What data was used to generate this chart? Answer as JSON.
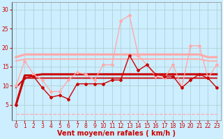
{
  "x": [
    0,
    1,
    2,
    3,
    4,
    5,
    6,
    7,
    8,
    9,
    10,
    11,
    12,
    13,
    14,
    15,
    16,
    17,
    18,
    19,
    20,
    21,
    22,
    23
  ],
  "bg_color": "#cceeff",
  "grid_color": "#aacccc",
  "xlabel": "Vent moyen/en rafales ( km/h )",
  "xlabel_color": "#cc0000",
  "xlabel_fontsize": 7,
  "yticks": [
    5,
    10,
    15,
    20,
    25,
    30
  ],
  "ylim": [
    1,
    32
  ],
  "xlim": [
    -0.5,
    23.5
  ],
  "tick_color": "#cc0000",
  "tick_fontsize": 5.5,
  "ref_line_upper1": {
    "y": [
      17.5,
      18.2,
      18.2,
      18.2,
      18.2,
      18.2,
      18.2,
      18.2,
      18.2,
      18.2,
      18.2,
      18.2,
      18.2,
      18.2,
      18.2,
      18.2,
      18.2,
      18.2,
      18.2,
      18.2,
      18.2,
      18.2,
      17.5,
      17.5
    ],
    "color": "#ffaaaa",
    "lw": 2.2
  },
  "ref_line_upper2": {
    "y": [
      16.5,
      17.0,
      17.0,
      17.0,
      17.0,
      17.0,
      17.0,
      17.0,
      17.0,
      17.0,
      17.0,
      17.0,
      17.0,
      17.0,
      17.0,
      17.0,
      17.0,
      17.0,
      17.0,
      17.0,
      17.0,
      17.0,
      16.5,
      16.5
    ],
    "color": "#ffaaaa",
    "lw": 1.3
  },
  "ref_line_mid1": {
    "y": [
      5.0,
      12.7,
      12.7,
      13.0,
      13.0,
      13.0,
      13.0,
      13.0,
      13.0,
      13.0,
      13.0,
      13.0,
      13.0,
      13.0,
      13.0,
      13.0,
      13.0,
      13.0,
      13.0,
      13.0,
      13.0,
      13.0,
      13.0,
      13.0
    ],
    "color": "#cc0000",
    "lw": 2.2
  },
  "ref_line_mid2": {
    "y": [
      9.5,
      12.0,
      12.0,
      12.0,
      12.0,
      12.0,
      12.0,
      12.0,
      12.0,
      12.0,
      12.0,
      12.0,
      12.0,
      12.0,
      12.0,
      12.0,
      12.0,
      12.0,
      12.0,
      12.0,
      12.0,
      12.0,
      12.0,
      12.0
    ],
    "color": "#cc0000",
    "lw": 1.3
  },
  "ref_line_lower": {
    "y": [
      2.5,
      2.5,
      2.5,
      2.5,
      2.5,
      2.5,
      2.5,
      2.5,
      2.5,
      2.5,
      2.5,
      2.5,
      2.5,
      2.5,
      2.5,
      2.5,
      2.5,
      2.5,
      2.5,
      2.5,
      2.5,
      2.5,
      2.5,
      2.5
    ],
    "color": "#ffaaaa",
    "lw": 0.9,
    "linestyle": "--"
  },
  "line_rafales": {
    "y": [
      10.0,
      16.5,
      13.0,
      11.5,
      8.5,
      8.5,
      11.5,
      13.5,
      13.0,
      11.5,
      15.5,
      15.5,
      27.0,
      28.5,
      18.0,
      15.5,
      12.5,
      12.0,
      15.5,
      9.5,
      20.5,
      20.5,
      12.0,
      15.5
    ],
    "color": "#ffaaaa",
    "lw": 1.0,
    "marker": "D",
    "markersize": 2.0
  },
  "line_vent_moyen": {
    "y": [
      5.0,
      12.0,
      12.5,
      9.5,
      7.0,
      7.5,
      6.5,
      10.5,
      10.5,
      10.5,
      10.5,
      11.5,
      11.5,
      18.0,
      14.0,
      15.5,
      13.0,
      12.5,
      12.5,
      9.5,
      11.5,
      13.0,
      12.0,
      9.5
    ],
    "color": "#cc0000",
    "lw": 1.0,
    "marker": "D",
    "markersize": 2.0
  }
}
